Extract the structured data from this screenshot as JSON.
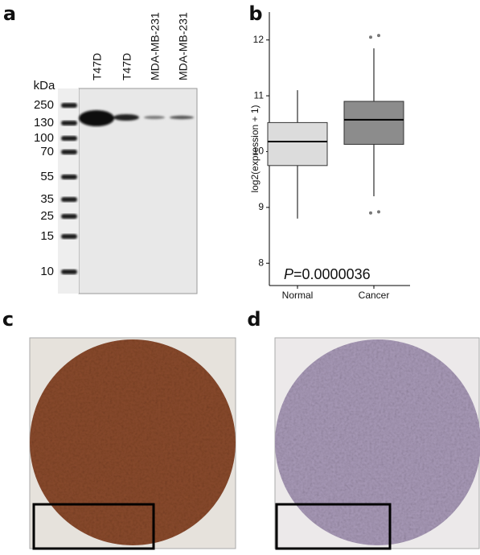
{
  "panels": {
    "a": {
      "label": "a",
      "unit": "kDa",
      "lanes": [
        "T47D",
        "T47D",
        "MDA-MB-231",
        "MDA-MB-231"
      ],
      "markers": [
        "250",
        "130",
        "100",
        "70",
        "55",
        "35",
        "25",
        "15",
        "10"
      ]
    },
    "b": {
      "label": "b"
    },
    "c": {
      "label": "c"
    },
    "d": {
      "label": "d"
    }
  },
  "chart_data": {
    "type": "box",
    "y_label": "log2(expression + 1)",
    "annotation_italic": "P",
    "annotation": "=0.0000036",
    "categories": [
      "Normal",
      "Cancer"
    ],
    "stats": [
      {
        "low": 8.8,
        "q1": 9.75,
        "median": 10.18,
        "q3": 10.52,
        "high": 11.1
      },
      {
        "low": 9.2,
        "q1": 10.13,
        "median": 10.57,
        "q3": 10.9,
        "high": 11.85
      }
    ],
    "outliers": [
      [],
      [
        12.05,
        12.08,
        8.9,
        8.92
      ]
    ],
    "colors": [
      "#dcdcdc",
      "#8c8c8c"
    ],
    "ylim": [
      7.6,
      12.5
    ],
    "yticks": [
      8,
      9,
      10,
      11,
      12
    ]
  }
}
